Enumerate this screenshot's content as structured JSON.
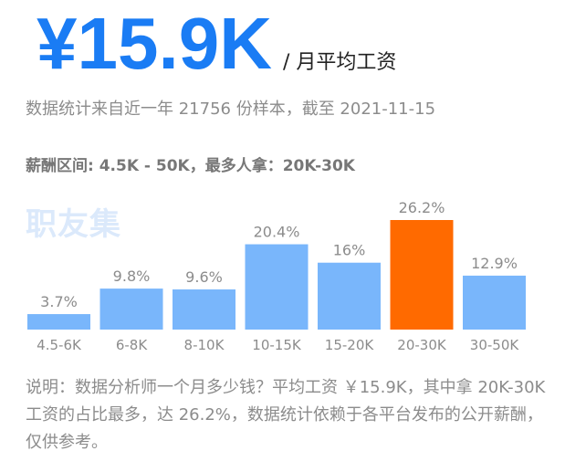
{
  "header": {
    "salary_value": "¥15.9K",
    "salary_unit": "/ 月平均工资"
  },
  "stats_line": "数据统计来自近一年 21756 份样本，截至 2021-11-15",
  "range_line": "薪酬区间: 4.5K - 50K，最多人拿：20K-30K",
  "watermark": "职友集",
  "note": "说明：数据分析师一个月多少钱？平均工资 ￥15.9K，其中拿 20K-30K 工资的占比最多，达 26.2%，数据统计依赖于各平台发布的公开薪酬，仅供参考。",
  "colors": {
    "bar": "#79b6fb",
    "highlight": "#ff6a00",
    "accent": "#1a7cf4",
    "label": "#8c8c8c"
  },
  "chart_data": {
    "type": "bar",
    "categories": [
      "4.5-6K",
      "6-8K",
      "8-10K",
      "10-15K",
      "15-20K",
      "20-30K",
      "30-50K"
    ],
    "values": [
      3.7,
      9.8,
      9.6,
      20.4,
      16,
      26.2,
      12.9
    ],
    "value_labels": [
      "3.7%",
      "9.8%",
      "9.6%",
      "20.4%",
      "16%",
      "26.2%",
      "12.9%"
    ],
    "highlight_category": "20-30K",
    "ylim": [
      0,
      26.2
    ],
    "grid": false,
    "title": "",
    "xlabel": "",
    "ylabel": ""
  }
}
